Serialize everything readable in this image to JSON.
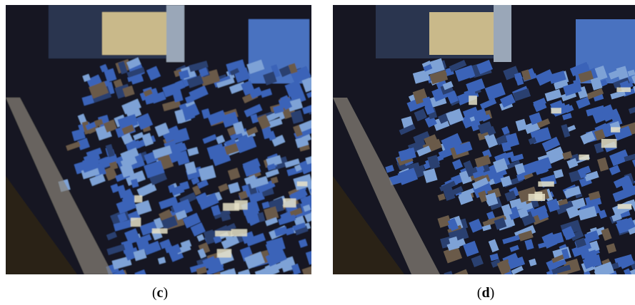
{
  "panels": [
    {
      "id": "c",
      "caption": "(c)",
      "letter": "c",
      "image": "satellite-image-urban-village-sharper"
    },
    {
      "id": "d",
      "caption": "(d)",
      "letter": "d",
      "image": "satellite-image-urban-village-blurred"
    }
  ],
  "colors": {
    "roof_blue": "#3b63b8",
    "roof_light": "#7ea2d6",
    "shadow": "#141820",
    "road": "#8a857a",
    "sand": "#c9b98a"
  }
}
